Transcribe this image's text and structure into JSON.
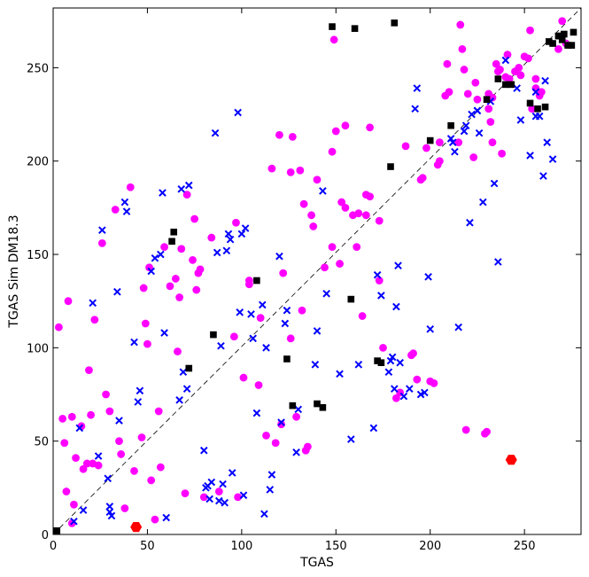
{
  "chart_data": {
    "type": "scatter",
    "xlabel": "TGAS",
    "ylabel": "TGAS Sim DM18.3",
    "xlim": [
      0,
      280
    ],
    "ylim": [
      0,
      282
    ],
    "xticks": [
      0,
      50,
      100,
      150,
      200,
      250
    ],
    "yticks": [
      0,
      50,
      100,
      150,
      200,
      250
    ],
    "grid": false,
    "diagonal": {
      "style": "dashed",
      "color": "#000000",
      "from": [
        0,
        0
      ],
      "to": [
        280,
        282
      ]
    },
    "series": [
      {
        "marker": "circle",
        "color": "#ff00ff",
        "points": [
          [
            3,
            111
          ],
          [
            5,
            62
          ],
          [
            6,
            49
          ],
          [
            7,
            23
          ],
          [
            8,
            125
          ],
          [
            10,
            63
          ],
          [
            10,
            6
          ],
          [
            12,
            41
          ],
          [
            11,
            16
          ],
          [
            15,
            58
          ],
          [
            16,
            35
          ],
          [
            18,
            38
          ],
          [
            19,
            88
          ],
          [
            20,
            64
          ],
          [
            21,
            38
          ],
          [
            22,
            115
          ],
          [
            24,
            37
          ],
          [
            26,
            156
          ],
          [
            28,
            75
          ],
          [
            30,
            66
          ],
          [
            33,
            174
          ],
          [
            35,
            50
          ],
          [
            36,
            43
          ],
          [
            38,
            14
          ],
          [
            41,
            186
          ],
          [
            43,
            34
          ],
          [
            47,
            52
          ],
          [
            48,
            132
          ],
          [
            49,
            113
          ],
          [
            50,
            102
          ],
          [
            51,
            143
          ],
          [
            52,
            29
          ],
          [
            54,
            8
          ],
          [
            56,
            66
          ],
          [
            57,
            36
          ],
          [
            59,
            154
          ],
          [
            62,
            133
          ],
          [
            65,
            137
          ],
          [
            66,
            98
          ],
          [
            67,
            127
          ],
          [
            68,
            153
          ],
          [
            70,
            22
          ],
          [
            71,
            182
          ],
          [
            74,
            147
          ],
          [
            75,
            169
          ],
          [
            76,
            131
          ],
          [
            77,
            140
          ],
          [
            78,
            142
          ],
          [
            80,
            20
          ],
          [
            84,
            159
          ],
          [
            88,
            23
          ],
          [
            96,
            106
          ],
          [
            97,
            167
          ],
          [
            98,
            20
          ],
          [
            101,
            84
          ],
          [
            104,
            134
          ],
          [
            104,
            136
          ],
          [
            109,
            80
          ],
          [
            110,
            116
          ],
          [
            113,
            53
          ],
          [
            116,
            196
          ],
          [
            118,
            49
          ],
          [
            120,
            214
          ],
          [
            121,
            59
          ],
          [
            122,
            140
          ],
          [
            126,
            194
          ],
          [
            126,
            105
          ],
          [
            127,
            213
          ],
          [
            129,
            63
          ],
          [
            131,
            195
          ],
          [
            132,
            120
          ],
          [
            133,
            177
          ],
          [
            134,
            45
          ],
          [
            135,
            47
          ],
          [
            137,
            171
          ],
          [
            138,
            165
          ],
          [
            140,
            190
          ],
          [
            144,
            143
          ],
          [
            148,
            154
          ],
          [
            148,
            205
          ],
          [
            149,
            265
          ],
          [
            150,
            216
          ],
          [
            152,
            145
          ],
          [
            153,
            178
          ],
          [
            155,
            175
          ],
          [
            155,
            219
          ],
          [
            159,
            171
          ],
          [
            161,
            154
          ],
          [
            162,
            172
          ],
          [
            164,
            117
          ],
          [
            166,
            182
          ],
          [
            166,
            171
          ],
          [
            168,
            181
          ],
          [
            168,
            218
          ],
          [
            173,
            136
          ],
          [
            173,
            168
          ],
          [
            175,
            100
          ],
          [
            182,
            73
          ],
          [
            184,
            76
          ],
          [
            187,
            208
          ],
          [
            190,
            96
          ],
          [
            191,
            97
          ],
          [
            193,
            83
          ],
          [
            195,
            190
          ],
          [
            196,
            191
          ],
          [
            198,
            207
          ],
          [
            200,
            82
          ],
          [
            202,
            81
          ],
          [
            204,
            198
          ],
          [
            205,
            200
          ],
          [
            205,
            210
          ],
          [
            208,
            235
          ],
          [
            209,
            252
          ],
          [
            210,
            237
          ],
          [
            215,
            210
          ],
          [
            216,
            273
          ],
          [
            217,
            260
          ],
          [
            218,
            249
          ],
          [
            219,
            56
          ],
          [
            220,
            236
          ],
          [
            223,
            202
          ],
          [
            224,
            242
          ],
          [
            225,
            233
          ],
          [
            229,
            54
          ],
          [
            230,
            55
          ],
          [
            231,
            228
          ],
          [
            231,
            236
          ],
          [
            232,
            221
          ],
          [
            233,
            210
          ],
          [
            233,
            234
          ],
          [
            235,
            252
          ],
          [
            236,
            248
          ],
          [
            237,
            249
          ],
          [
            238,
            204
          ],
          [
            240,
            245
          ],
          [
            241,
            257
          ],
          [
            242,
            244
          ],
          [
            245,
            248
          ],
          [
            247,
            250
          ],
          [
            248,
            246
          ],
          [
            250,
            256
          ],
          [
            252,
            255
          ],
          [
            253,
            270
          ],
          [
            254,
            228
          ],
          [
            256,
            239
          ],
          [
            256,
            244
          ],
          [
            258,
            235
          ],
          [
            259,
            237
          ],
          [
            268,
            260
          ],
          [
            270,
            275
          ],
          [
            272,
            263
          ]
        ]
      },
      {
        "marker": "x",
        "color": "#0000ff",
        "points": [
          [
            11,
            7
          ],
          [
            14,
            57
          ],
          [
            16,
            13
          ],
          [
            21,
            124
          ],
          [
            24,
            42
          ],
          [
            26,
            163
          ],
          [
            29,
            30
          ],
          [
            30,
            15
          ],
          [
            30,
            12
          ],
          [
            31,
            10
          ],
          [
            34,
            130
          ],
          [
            35,
            61
          ],
          [
            38,
            178
          ],
          [
            39,
            173
          ],
          [
            43,
            103
          ],
          [
            45,
            71
          ],
          [
            46,
            77
          ],
          [
            52,
            141
          ],
          [
            54,
            148
          ],
          [
            57,
            150
          ],
          [
            58,
            183
          ],
          [
            59,
            108
          ],
          [
            60,
            9
          ],
          [
            67,
            72
          ],
          [
            68,
            185
          ],
          [
            69,
            87
          ],
          [
            71,
            78
          ],
          [
            72,
            187
          ],
          [
            80,
            45
          ],
          [
            81,
            25
          ],
          [
            82,
            26
          ],
          [
            83,
            19
          ],
          [
            84,
            28
          ],
          [
            86,
            215
          ],
          [
            87,
            151
          ],
          [
            88,
            18
          ],
          [
            89,
            101
          ],
          [
            90,
            27
          ],
          [
            91,
            17
          ],
          [
            92,
            152
          ],
          [
            93,
            161
          ],
          [
            94,
            158
          ],
          [
            95,
            33
          ],
          [
            98,
            226
          ],
          [
            99,
            119
          ],
          [
            100,
            161
          ],
          [
            101,
            21
          ],
          [
            102,
            164
          ],
          [
            105,
            118
          ],
          [
            106,
            105
          ],
          [
            108,
            65
          ],
          [
            111,
            123
          ],
          [
            112,
            11
          ],
          [
            113,
            100
          ],
          [
            115,
            24
          ],
          [
            116,
            32
          ],
          [
            120,
            149
          ],
          [
            121,
            60
          ],
          [
            123,
            113
          ],
          [
            124,
            120
          ],
          [
            129,
            44
          ],
          [
            130,
            67
          ],
          [
            139,
            91
          ],
          [
            140,
            109
          ],
          [
            143,
            184
          ],
          [
            145,
            129
          ],
          [
            152,
            86
          ],
          [
            158,
            51
          ],
          [
            162,
            91
          ],
          [
            170,
            57
          ],
          [
            172,
            139
          ],
          [
            174,
            128
          ],
          [
            178,
            87
          ],
          [
            179,
            93
          ],
          [
            180,
            95
          ],
          [
            181,
            78
          ],
          [
            182,
            122
          ],
          [
            183,
            144
          ],
          [
            184,
            92
          ],
          [
            186,
            74
          ],
          [
            189,
            78
          ],
          [
            192,
            228
          ],
          [
            193,
            239
          ],
          [
            195,
            75
          ],
          [
            197,
            76
          ],
          [
            199,
            138
          ],
          [
            200,
            110
          ],
          [
            211,
            212
          ],
          [
            212,
            210
          ],
          [
            213,
            205
          ],
          [
            215,
            111
          ],
          [
            218,
            216
          ],
          [
            219,
            219
          ],
          [
            221,
            167
          ],
          [
            222,
            225
          ],
          [
            225,
            227
          ],
          [
            225,
            227
          ],
          [
            226,
            215
          ],
          [
            228,
            178
          ],
          [
            232,
            232
          ],
          [
            234,
            188
          ],
          [
            236,
            146
          ],
          [
            240,
            254
          ],
          [
            246,
            239
          ],
          [
            248,
            222
          ],
          [
            253,
            203
          ],
          [
            256,
            224
          ],
          [
            256,
            237
          ],
          [
            258,
            224
          ],
          [
            260,
            192
          ],
          [
            261,
            243
          ],
          [
            262,
            210
          ],
          [
            265,
            201
          ]
        ]
      },
      {
        "marker": "square",
        "color": "#000000",
        "points": [
          [
            2,
            2
          ],
          [
            63,
            157
          ],
          [
            64,
            162
          ],
          [
            72,
            89
          ],
          [
            85,
            107
          ],
          [
            108,
            136
          ],
          [
            124,
            94
          ],
          [
            127,
            69
          ],
          [
            140,
            70
          ],
          [
            143,
            68
          ],
          [
            148,
            272
          ],
          [
            158,
            126
          ],
          [
            160,
            271
          ],
          [
            172,
            93
          ],
          [
            174,
            92
          ],
          [
            179,
            197
          ],
          [
            181,
            274
          ],
          [
            200,
            211
          ],
          [
            211,
            219
          ],
          [
            230,
            233
          ],
          [
            236,
            244
          ],
          [
            240,
            241
          ],
          [
            243,
            241
          ],
          [
            253,
            231
          ],
          [
            257,
            228
          ],
          [
            261,
            229
          ],
          [
            263,
            264
          ],
          [
            265,
            263
          ],
          [
            268,
            267
          ],
          [
            269,
            267
          ],
          [
            270,
            265
          ],
          [
            271,
            268
          ],
          [
            273,
            262
          ],
          [
            275,
            262
          ],
          [
            276,
            269
          ]
        ]
      },
      {
        "marker": "hexagon",
        "color": "#ff0000",
        "points": [
          [
            44,
            4
          ],
          [
            243,
            40
          ]
        ]
      }
    ]
  }
}
